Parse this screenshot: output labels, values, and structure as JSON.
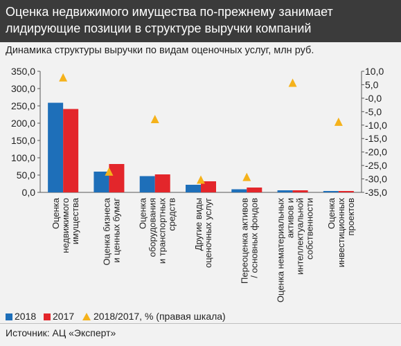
{
  "title": "Оценка недвижимого имущества по-прежнему занимает лидирующие позиции в структуре выручки компаний",
  "subtitle": "Динамика структуры выручки по видам оценочных услуг, млн руб.",
  "source": "Источник: АЦ «Эксперт»",
  "colors": {
    "s2018": "#1e6fb9",
    "s2017": "#e3262b",
    "ratio": "#f5b21b",
    "titlebar": "#3b3b3b"
  },
  "chart_data": {
    "type": "bar",
    "categories": [
      [
        "Оценка",
        "недвижимого",
        "имущества"
      ],
      [
        "Оценка бизнеса",
        "и ценных бумаг"
      ],
      [
        "Оценка",
        "оборудования",
        "и транспортных",
        "средств"
      ],
      [
        "Другие виды",
        "оценочных услуг"
      ],
      [
        "Переоценка активов",
        "/ основных фондов"
      ],
      [
        "Оценка нематериальных",
        "активов и",
        "интеллектуальной",
        "собственности"
      ],
      [
        "Оценка",
        "инвестиционных",
        "проектов"
      ]
    ],
    "series": [
      {
        "name": "2018",
        "values": [
          259,
          60,
          47,
          22,
          9,
          6,
          4
        ]
      },
      {
        "name": "2017",
        "values": [
          241,
          82,
          52,
          32,
          14,
          6,
          4
        ]
      }
    ],
    "ratio_series": {
      "name": "2018/2017, % (правая шкала)",
      "values": [
        7.5,
        -27.5,
        -8,
        -30.5,
        -29.5,
        5.5,
        -9
      ]
    },
    "y_left": {
      "min": 0,
      "max": 350,
      "ticks": [
        "0,0",
        "50,0",
        "100,0",
        "150,0",
        "200,0",
        "250,0",
        "300,0",
        "350,0"
      ]
    },
    "y_right": {
      "min": -35,
      "max": 10,
      "ticks": [
        "-35,0",
        "-30,0",
        "-25,0",
        "-20,0",
        "-15,0",
        "-10,0",
        "-5,0",
        "-0,0",
        "5,0",
        "10,0"
      ]
    },
    "grid": false,
    "legend": "bottom"
  }
}
